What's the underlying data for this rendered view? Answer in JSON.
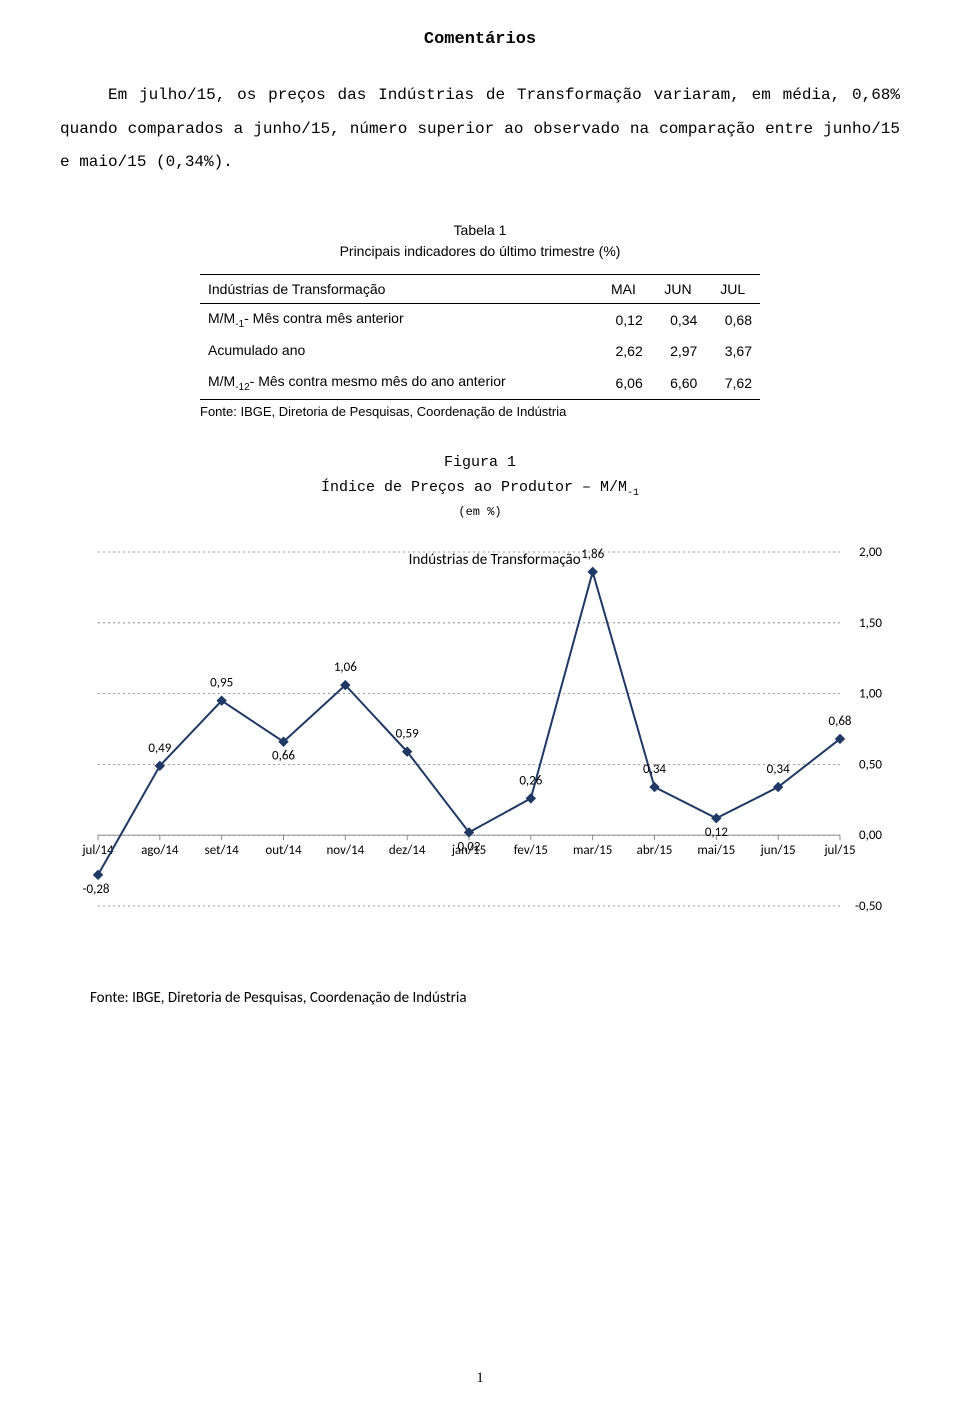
{
  "page": {
    "title": "Comentários",
    "paragraph": "Em julho/15, os preços das Indústrias de Transformação variaram, em média, 0,68% quando comparados a junho/15, número superior ao observado na comparação entre junho/15 e maio/15 (0,34%).",
    "number": "1"
  },
  "table": {
    "caption_line1": "Tabela 1",
    "caption_line2": "Principais indicadores do último trimestre (%)",
    "columns": [
      "Indústrias de Transformação",
      "MAI",
      "JUN",
      "JUL"
    ],
    "rows": [
      {
        "label_pre": "M/M",
        "label_sub": "-1",
        "label_post": "- Mês contra mês anterior",
        "c1": "0,12",
        "c2": "0,34",
        "c3": "0,68"
      },
      {
        "label_pre": "Acumulado ano",
        "label_sub": "",
        "label_post": "",
        "c1": "2,62",
        "c2": "2,97",
        "c3": "3,67"
      },
      {
        "label_pre": "M/M",
        "label_sub": "-12",
        "label_post": "- Mês contra mesmo mês do ano anterior",
        "c1": "6,06",
        "c2": "6,60",
        "c3": "7,62"
      }
    ],
    "source": "Fonte: IBGE, Diretoria de Pesquisas, Coordenação de Indústria"
  },
  "figure": {
    "number": "Figura 1",
    "title_pre": "Índice de Preços ao Produtor – M/M",
    "title_sub": "-1",
    "subtitle": "(em %)"
  },
  "chart": {
    "type": "line",
    "series_label": "Indústrias de Transformação",
    "x_labels": [
      "jul/14",
      "ago/14",
      "set/14",
      "out/14",
      "nov/14",
      "dez/14",
      "jan/15",
      "fev/15",
      "mar/15",
      "abr/15",
      "mai/15",
      "jun/15",
      "jul/15"
    ],
    "values": [
      -0.28,
      0.49,
      0.95,
      0.66,
      1.06,
      0.59,
      0.02,
      0.26,
      1.86,
      0.34,
      0.12,
      0.34,
      0.68
    ],
    "value_labels": [
      "-0,28",
      "0,49",
      "0,95",
      "0,66",
      "1,06",
      "0,59",
      "0,02",
      "0,26",
      "1,86",
      "0,34",
      "0,12",
      "0,34",
      "0,68"
    ],
    "label_dy": [
      18,
      -14,
      -14,
      18,
      -14,
      -14,
      18,
      -14,
      -14,
      -14,
      18,
      -14,
      -14
    ],
    "label_dx": [
      -2,
      0,
      0,
      0,
      0,
      0,
      0,
      0,
      0,
      0,
      0,
      0,
      0
    ],
    "y_ticks": [
      -0.5,
      0.0,
      0.5,
      1.0,
      1.5,
      2.0
    ],
    "y_tick_labels": [
      "-0,50",
      "0,00",
      "0,50",
      "1,00",
      "1,50",
      "2,00"
    ],
    "ylim": [
      -0.5,
      2.0
    ],
    "xlim": [
      0,
      12
    ],
    "line_color": "#1f3864",
    "line_width": 2,
    "marker_size": 4.5,
    "marker_fill": "#1f3864",
    "grid_color": "#7f7f7f",
    "grid_dash": "2,3",
    "axis_color": "#7f7f7f",
    "tick_color": "#7f7f7f",
    "label_font_size": 13,
    "value_label_font_size": 13,
    "value_label_color": "#000000",
    "background_color": "#ffffff",
    "source": "Fonte: IBGE, Diretoria de Pesquisas, Coordenação de Indústria"
  }
}
